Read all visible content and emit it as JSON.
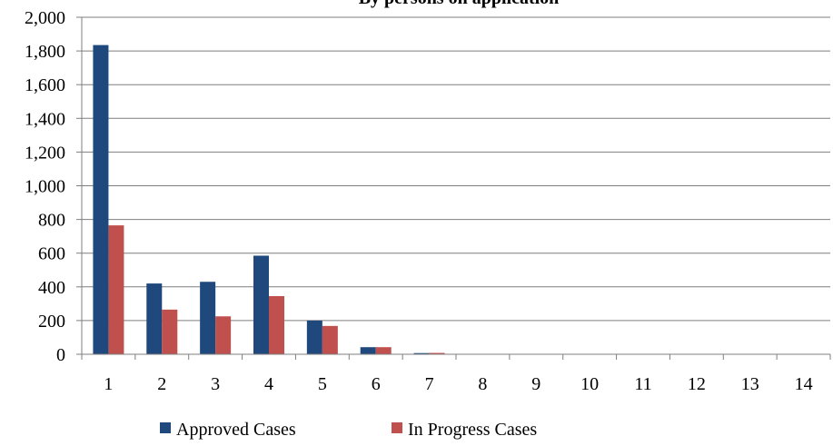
{
  "colors": {
    "approved": "#1F497D",
    "in_progress": "#C0504D",
    "grid": "#7F7F7F",
    "axis": "#7F7F7F"
  },
  "chart_data": {
    "type": "bar",
    "title": "By persons on application",
    "xlabel": "",
    "ylabel": "",
    "categories": [
      "1",
      "2",
      "3",
      "4",
      "5",
      "6",
      "7",
      "8",
      "9",
      "10",
      "11",
      "12",
      "13",
      "14"
    ],
    "series": [
      {
        "name": "Approved Cases",
        "values": [
          1835,
          420,
          430,
          585,
          200,
          42,
          7,
          2,
          1,
          1,
          0,
          0,
          0,
          0
        ]
      },
      {
        "name": "In Progress Cases",
        "values": [
          765,
          265,
          225,
          345,
          168,
          42,
          8,
          2,
          1,
          0,
          0,
          0,
          0,
          0
        ]
      }
    ],
    "ylim": [
      0,
      2000
    ],
    "yticks": [
      0,
      200,
      400,
      600,
      800,
      1000,
      1200,
      1400,
      1600,
      1800,
      2000
    ],
    "ytick_labels": [
      "0",
      "200",
      "400",
      "600",
      "800",
      "1,000",
      "1,200",
      "1,400",
      "1,600",
      "1,800",
      "2,000"
    ],
    "grid": true,
    "legend": "bottom"
  }
}
